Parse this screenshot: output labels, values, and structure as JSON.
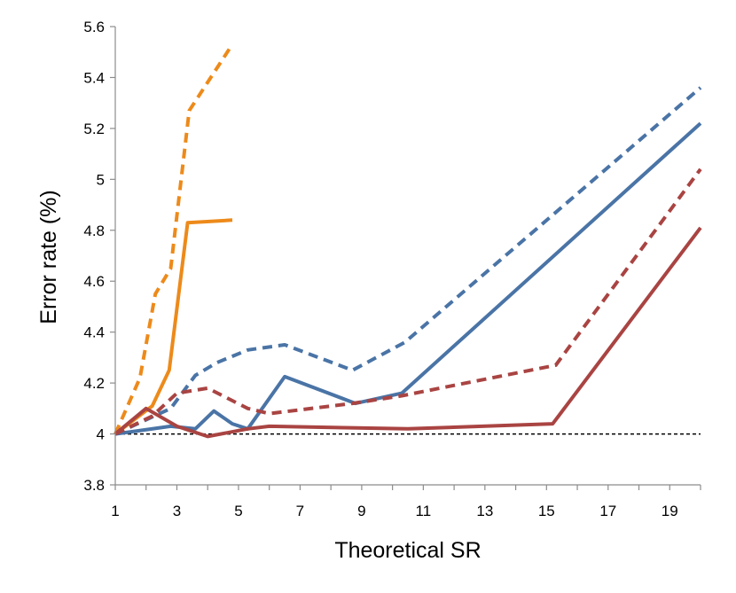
{
  "chart_data": {
    "type": "line",
    "title": "",
    "xlabel": "Theoretical SR",
    "ylabel": "Error rate (%)",
    "xlim": [
      1,
      20
    ],
    "ylim": [
      3.8,
      5.6
    ],
    "x_ticks": [
      "1",
      "3",
      "5",
      "7",
      "9",
      "11",
      "13",
      "15",
      "17",
      "19"
    ],
    "y_ticks": [
      "3.8",
      "4",
      "4.2",
      "4.4",
      "4.6",
      "4.8",
      "5",
      "5.2",
      "5.4",
      "5.6"
    ],
    "legend": "none",
    "series": [
      {
        "name": "orange-dashed",
        "color": "#ED8A1A",
        "style": "dashed",
        "x": [
          1,
          1.8,
          2.3,
          2.8,
          3.4,
          4.8
        ],
        "y": [
          4.0,
          4.22,
          4.55,
          4.65,
          5.27,
          5.53
        ]
      },
      {
        "name": "orange-solid",
        "color": "#ED8A1A",
        "style": "solid",
        "x": [
          1,
          2.2,
          2.75,
          3.35,
          4.8
        ],
        "y": [
          4.0,
          4.11,
          4.25,
          4.83,
          4.84
        ]
      },
      {
        "name": "blue-dashed",
        "color": "#4A74A6",
        "style": "dashed",
        "x": [
          1,
          2.8,
          3.6,
          4.3,
          5.3,
          6.5,
          8.7,
          10.4,
          20
        ],
        "y": [
          4.0,
          4.1,
          4.23,
          4.28,
          4.33,
          4.35,
          4.25,
          4.36,
          5.36
        ]
      },
      {
        "name": "blue-solid",
        "color": "#4A74A6",
        "style": "solid",
        "x": [
          1,
          2.8,
          3.6,
          4.2,
          4.8,
          5.3,
          6.5,
          8.8,
          10.3,
          20
        ],
        "y": [
          4.0,
          4.03,
          4.02,
          4.09,
          4.04,
          4.02,
          4.225,
          4.12,
          4.16,
          5.22
        ]
      },
      {
        "name": "red-dashed",
        "color": "#A94442",
        "style": "dashed",
        "x": [
          1,
          2.2,
          3.0,
          4.0,
          5.3,
          6.0,
          8.7,
          10.3,
          15.3,
          20
        ],
        "y": [
          4.0,
          4.07,
          4.16,
          4.18,
          4.1,
          4.08,
          4.12,
          4.15,
          4.27,
          5.04
        ]
      },
      {
        "name": "red-solid",
        "color": "#A94442",
        "style": "solid",
        "x": [
          1,
          2.0,
          3.0,
          4.0,
          5.3,
          6.0,
          10.5,
          15.2,
          20
        ],
        "y": [
          4.0,
          4.1,
          4.03,
          3.99,
          4.02,
          4.03,
          4.02,
          4.04,
          4.81
        ]
      },
      {
        "name": "baseline",
        "color": "#000000",
        "style": "dotted",
        "x": [
          1,
          20
        ],
        "y": [
          4.0,
          4.0
        ]
      }
    ]
  }
}
